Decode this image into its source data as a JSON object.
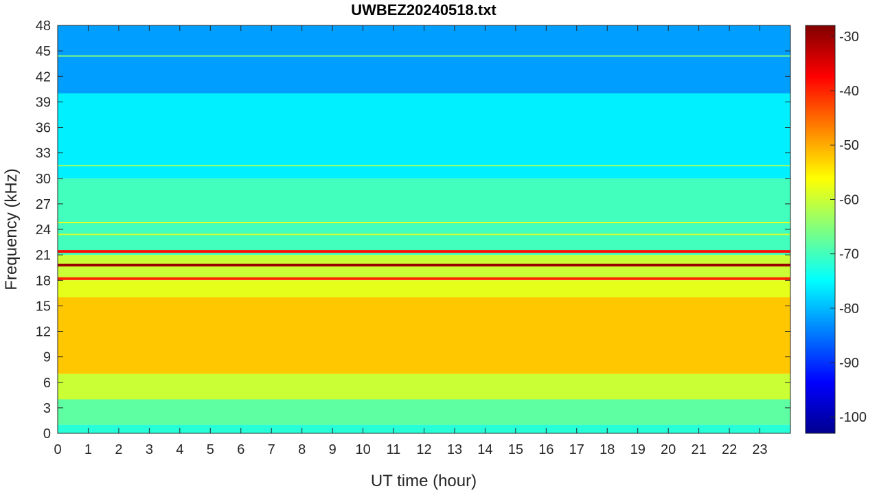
{
  "chart_data": {
    "type": "heatmap",
    "title": "UWBEZ20240518.txt",
    "xlabel": "UT time (hour)",
    "ylabel": "Frequency (kHz)",
    "xlim": [
      0,
      24
    ],
    "ylim": [
      0,
      48
    ],
    "x_ticks": [
      "0",
      "1",
      "2",
      "3",
      "4",
      "5",
      "6",
      "7",
      "8",
      "9",
      "10",
      "11",
      "12",
      "13",
      "14",
      "15",
      "16",
      "17",
      "18",
      "19",
      "20",
      "21",
      "22",
      "23"
    ],
    "y_ticks": [
      "0",
      "3",
      "6",
      "9",
      "12",
      "15",
      "18",
      "21",
      "24",
      "27",
      "30",
      "33",
      "36",
      "39",
      "42",
      "45",
      "48"
    ],
    "colorbar": {
      "colormap": "jet",
      "clim": [
        -103,
        -28
      ],
      "ticks": [
        "-30",
        "-40",
        "-50",
        "-60",
        "-70",
        "-80",
        "-90",
        "-100"
      ]
    },
    "approx_levels_by_frequency_kHz": [
      {
        "band": [
          0,
          1
        ],
        "dB": -72
      },
      {
        "band": [
          1,
          4
        ],
        "dB": -68
      },
      {
        "band": [
          4,
          7
        ],
        "dB": -60
      },
      {
        "band": [
          7,
          16
        ],
        "dB": -52
      },
      {
        "band": [
          16,
          18
        ],
        "dB": -58
      },
      {
        "band": [
          18,
          21
        ],
        "dB": -60
      },
      {
        "band": [
          21,
          30
        ],
        "dB": -70
      },
      {
        "band": [
          30,
          40
        ],
        "dB": -76
      },
      {
        "band": [
          40,
          48
        ],
        "dB": -82
      }
    ],
    "narrowband_lines_kHz": [
      {
        "freq": 19.8,
        "dB": -30
      },
      {
        "freq": 21.4,
        "dB": -38
      },
      {
        "freq": 18.2,
        "dB": -40
      },
      {
        "freq": 24.8,
        "dB": -58
      },
      {
        "freq": 23.4,
        "dB": -60
      },
      {
        "freq": 44.4,
        "dB": -65
      },
      {
        "freq": 31.5,
        "dB": -63
      }
    ]
  }
}
